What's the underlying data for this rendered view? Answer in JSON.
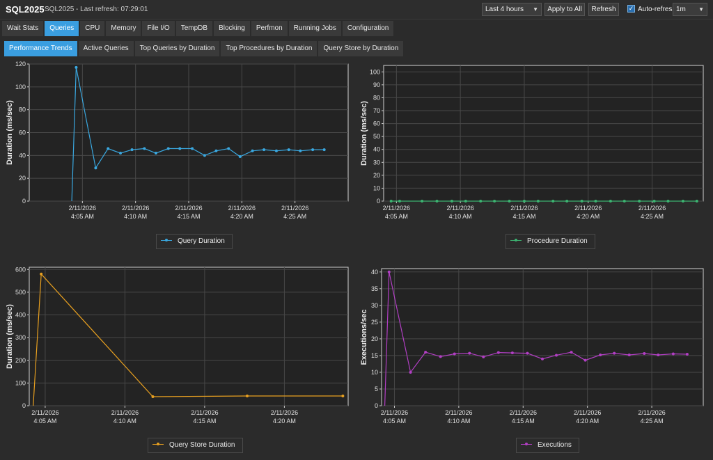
{
  "header": {
    "title": "SQL2025",
    "subtitle": "SQL2025 - Last refresh: 07:29:01",
    "time_range": "Last 4 hours",
    "apply_all": "Apply to All",
    "refresh": "Refresh",
    "auto_refresh_label": "Auto-refresh",
    "auto_refresh_checked": true,
    "interval": "1m"
  },
  "main_tabs": [
    "Wait Stats",
    "Queries",
    "CPU",
    "Memory",
    "File I/O",
    "TempDB",
    "Blocking",
    "Perfmon",
    "Running Jobs",
    "Configuration"
  ],
  "main_tab_active": "Queries",
  "sub_tabs": [
    "Performance Trends",
    "Active Queries",
    "Top Queries by Duration",
    "Top Procedures by Duration",
    "Query Store by Duration"
  ],
  "sub_tab_active": "Performance Trends",
  "colors": {
    "query_duration": "#3aa8e0",
    "procedure_duration": "#3cb371",
    "query_store_duration": "#e8a020",
    "executions": "#b23fc4",
    "grid": "#484848",
    "plot_bg": "#232323",
    "active_tab": "#3a9ee0"
  },
  "chart_data": [
    {
      "type": "line",
      "ylabel": "Duration (ms/sec)",
      "ylim": [
        0,
        120
      ],
      "yticks": [
        0,
        20,
        40,
        60,
        80,
        100,
        120
      ],
      "xlim": [
        "04:00",
        "04:30"
      ],
      "xticks": [
        {
          "t": "04:05",
          "line1": "2/11/2026",
          "line2": "4:05 AM"
        },
        {
          "t": "04:10",
          "line1": "2/11/2026",
          "line2": "4:10 AM"
        },
        {
          "t": "04:15",
          "line1": "2/11/2026",
          "line2": "4:15 AM"
        },
        {
          "t": "04:20",
          "line1": "2/11/2026",
          "line2": "4:20 AM"
        },
        {
          "t": "04:25",
          "line1": "2/11/2026",
          "line2": "4:25 AM"
        }
      ],
      "grid": true,
      "series": [
        {
          "name": "Query Duration",
          "color": "#3aa8e0",
          "x": [
            "04:04:00",
            "04:04:25",
            "04:06:15",
            "04:07:25",
            "04:08:35",
            "04:09:40",
            "04:10:50",
            "04:11:55",
            "04:13:05",
            "04:14:10",
            "04:15:20",
            "04:16:30",
            "04:17:35",
            "04:18:45",
            "04:19:50",
            "04:21:00",
            "04:22:05",
            "04:23:15",
            "04:24:25",
            "04:25:30",
            "04:26:40",
            "04:27:45"
          ],
          "y": [
            0,
            117,
            29,
            46,
            42,
            45,
            46,
            42,
            46,
            46,
            46,
            40,
            44,
            46,
            39,
            44,
            45,
            44,
            45,
            44,
            45,
            45
          ],
          "markers": [
            false,
            true,
            true,
            true,
            true,
            true,
            true,
            true,
            true,
            true,
            true,
            true,
            true,
            true,
            true,
            true,
            true,
            true,
            true,
            true,
            true,
            true
          ]
        }
      ]
    },
    {
      "type": "line",
      "ylabel": "Duration (ms/sec)",
      "ylim": [
        0,
        105
      ],
      "yticks": [
        0,
        10,
        20,
        30,
        40,
        50,
        60,
        70,
        80,
        90,
        100
      ],
      "xlim": [
        "04:04:00",
        "04:29:00"
      ],
      "xticks": [
        {
          "t": "04:05",
          "line1": "2/11/2026",
          "line2": "4:05 AM"
        },
        {
          "t": "04:10",
          "line1": "2/11/2026",
          "line2": "4:10 AM"
        },
        {
          "t": "04:15",
          "line1": "2/11/2026",
          "line2": "4:15 AM"
        },
        {
          "t": "04:20",
          "line1": "2/11/2026",
          "line2": "4:20 AM"
        },
        {
          "t": "04:25",
          "line1": "2/11/2026",
          "line2": "4:25 AM"
        }
      ],
      "grid": true,
      "series": [
        {
          "name": "Procedure Duration",
          "color": "#3cb371",
          "x": [
            "04:04:35",
            "04:05:15",
            "04:07:00",
            "04:08:10",
            "04:09:20",
            "04:10:25",
            "04:11:35",
            "04:12:40",
            "04:13:50",
            "04:15:00",
            "04:16:05",
            "04:17:15",
            "04:18:20",
            "04:19:30",
            "04:20:35",
            "04:21:45",
            "04:22:50",
            "04:24:00",
            "04:25:10",
            "04:26:15",
            "04:27:25",
            "04:28:30"
          ],
          "y": [
            0,
            0,
            0,
            0,
            0,
            0,
            0,
            0,
            0,
            0,
            0,
            0,
            0,
            0,
            0,
            0,
            0,
            0,
            0,
            0,
            0,
            0
          ]
        }
      ]
    },
    {
      "type": "line",
      "ylabel": "Duration (ms/sec)",
      "ylim": [
        0,
        610
      ],
      "yticks": [
        0,
        100,
        200,
        300,
        400,
        500,
        600
      ],
      "xlim": [
        "04:04:00",
        "04:24:00"
      ],
      "xticks": [
        {
          "t": "04:05",
          "line1": "2/11/2026",
          "line2": "4:05 AM"
        },
        {
          "t": "04:10",
          "line1": "2/11/2026",
          "line2": "4:10 AM"
        },
        {
          "t": "04:15",
          "line1": "2/11/2026",
          "line2": "4:15 AM"
        },
        {
          "t": "04:20",
          "line1": "2/11/2026",
          "line2": "4:20 AM"
        }
      ],
      "grid": true,
      "series": [
        {
          "name": "Query Store Duration",
          "color": "#e8a020",
          "x": [
            "04:04:15",
            "04:04:45",
            "04:11:45",
            "04:17:40",
            "04:23:40"
          ],
          "y": [
            0,
            580,
            40,
            43,
            43
          ],
          "markers": [
            false,
            true,
            true,
            true,
            true
          ]
        }
      ]
    },
    {
      "type": "line",
      "ylabel": "Executions/sec",
      "ylim": [
        0,
        41
      ],
      "yticks": [
        0,
        5,
        10,
        15,
        20,
        25,
        30,
        35,
        40
      ],
      "xlim": [
        "04:04:00",
        "04:29:00"
      ],
      "xticks": [
        {
          "t": "04:05",
          "line1": "2/11/2026",
          "line2": "4:05 AM"
        },
        {
          "t": "04:10",
          "line1": "2/11/2026",
          "line2": "4:10 AM"
        },
        {
          "t": "04:15",
          "line1": "2/11/2026",
          "line2": "4:15 AM"
        },
        {
          "t": "04:20",
          "line1": "2/11/2026",
          "line2": "4:20 AM"
        },
        {
          "t": "04:25",
          "line1": "2/11/2026",
          "line2": "4:25 AM"
        }
      ],
      "grid": true,
      "series": [
        {
          "name": "Executions",
          "color": "#b23fc4",
          "x": [
            "04:04:15",
            "04:04:35",
            "04:06:15",
            "04:07:25",
            "04:08:35",
            "04:09:40",
            "04:10:50",
            "04:11:55",
            "04:13:05",
            "04:14:10",
            "04:15:20",
            "04:16:30",
            "04:17:35",
            "04:18:45",
            "04:19:50",
            "04:21:00",
            "04:22:05",
            "04:23:15",
            "04:24:25",
            "04:25:30",
            "04:26:40",
            "04:27:45"
          ],
          "y": [
            0,
            40,
            10,
            16,
            14.7,
            15.5,
            15.7,
            14.6,
            15.9,
            15.8,
            15.7,
            14,
            15.1,
            16,
            13.6,
            15.2,
            15.7,
            15.2,
            15.6,
            15.2,
            15.5,
            15.4
          ],
          "markers": [
            false,
            true,
            true,
            true,
            true,
            true,
            true,
            true,
            true,
            true,
            true,
            true,
            true,
            true,
            true,
            true,
            true,
            true,
            true,
            true,
            true,
            true
          ]
        }
      ]
    }
  ]
}
